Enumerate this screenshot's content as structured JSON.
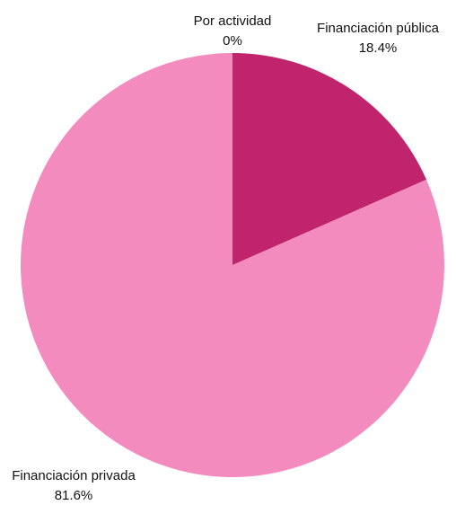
{
  "chart_data": {
    "type": "pie",
    "start_angle_deg": 0,
    "direction": "clockwise",
    "slices": [
      {
        "label": "Financiación pública",
        "value": 18.4,
        "value_label": "18.4%",
        "color": "#C0246C"
      },
      {
        "label": "Financiación privada",
        "value": 81.6,
        "value_label": "81.6%",
        "color": "#F48BBE"
      },
      {
        "label": "Por actividad",
        "value": 0,
        "value_label": "0%",
        "color": "#E05A9C"
      }
    ],
    "legend": "none"
  }
}
